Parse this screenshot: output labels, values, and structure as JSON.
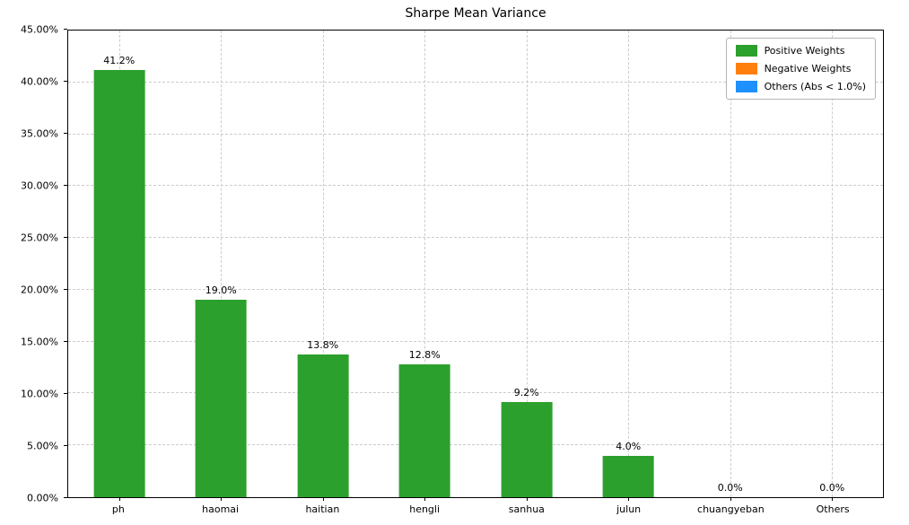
{
  "chart_data": {
    "type": "bar",
    "title": "Sharpe Mean Variance",
    "xlabel": "",
    "ylabel": "",
    "categories": [
      "ph",
      "haomai",
      "haitian",
      "hengli",
      "sanhua",
      "julun",
      "chuangyeban",
      "Others"
    ],
    "values": [
      41.2,
      19.0,
      13.8,
      12.8,
      9.2,
      4.0,
      0.0,
      0.0
    ],
    "bar_labels": [
      "41.2%",
      "19.0%",
      "13.8%",
      "12.8%",
      "9.2%",
      "4.0%",
      "0.0%",
      "0.0%"
    ],
    "bar_colors": [
      "#2ca02c",
      "#2ca02c",
      "#2ca02c",
      "#2ca02c",
      "#2ca02c",
      "#2ca02c",
      "#2ca02c",
      "#2ca02c"
    ],
    "ylim": [
      0,
      45
    ],
    "yticks": [
      {
        "value": 0,
        "label": "0.00%"
      },
      {
        "value": 5,
        "label": "5.00%"
      },
      {
        "value": 10,
        "label": "10.00%"
      },
      {
        "value": 15,
        "label": "15.00%"
      },
      {
        "value": 20,
        "label": "20.00%"
      },
      {
        "value": 25,
        "label": "25.00%"
      },
      {
        "value": 30,
        "label": "30.00%"
      },
      {
        "value": 35,
        "label": "35.00%"
      },
      {
        "value": 40,
        "label": "40.00%"
      },
      {
        "value": 45,
        "label": "45.00%"
      }
    ],
    "grid": true,
    "legend": {
      "position": "top-right",
      "items": [
        {
          "label": "Positive Weights",
          "color": "#2ca02c"
        },
        {
          "label": "Negative Weights",
          "color": "#ff7f0e"
        },
        {
          "label": "Others (Abs < 1.0%)",
          "color": "#1e90ff"
        }
      ]
    }
  }
}
